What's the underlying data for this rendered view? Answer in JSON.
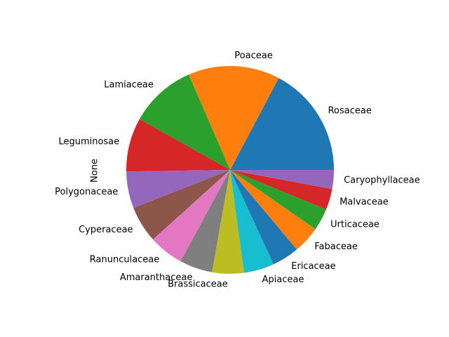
{
  "chart_data": {
    "type": "pie",
    "ylabel": "None",
    "start_angle_deg": 0,
    "direction": "counterclockwise",
    "slices": [
      {
        "label": "Rosaceae",
        "value": 17.5,
        "color": "#1f77b4"
      },
      {
        "label": "Poaceae",
        "value": 14.5,
        "color": "#ff7f0e"
      },
      {
        "label": "Lamiaceae",
        "value": 10.5,
        "color": "#2ca02c"
      },
      {
        "label": "Leguminosae",
        "value": 8.5,
        "color": "#d62728"
      },
      {
        "label": "Polygonaceae",
        "value": 5.8,
        "color": "#9467bd"
      },
      {
        "label": "Cyperaceae",
        "value": 5.8,
        "color": "#8c564b"
      },
      {
        "label": "Ranunculaceae",
        "value": 5.5,
        "color": "#e377c2"
      },
      {
        "label": "Amaranthaceae",
        "value": 5.2,
        "color": "#7f7f7f"
      },
      {
        "label": "Brassicaceae",
        "value": 5.0,
        "color": "#bcbd22"
      },
      {
        "label": "Apiaceae",
        "value": 4.8,
        "color": "#17becf"
      },
      {
        "label": "Ericaceae",
        "value": 4.3,
        "color": "#1f77b4"
      },
      {
        "label": "Fabaceae",
        "value": 4.3,
        "color": "#ff7f0e"
      },
      {
        "label": "Urticaceae",
        "value": 3.5,
        "color": "#2ca02c"
      },
      {
        "label": "Malvaceae",
        "value": 3.3,
        "color": "#d62728"
      },
      {
        "label": "Caryophyllaceae",
        "value": 3.0,
        "color": "#9467bd"
      }
    ]
  }
}
